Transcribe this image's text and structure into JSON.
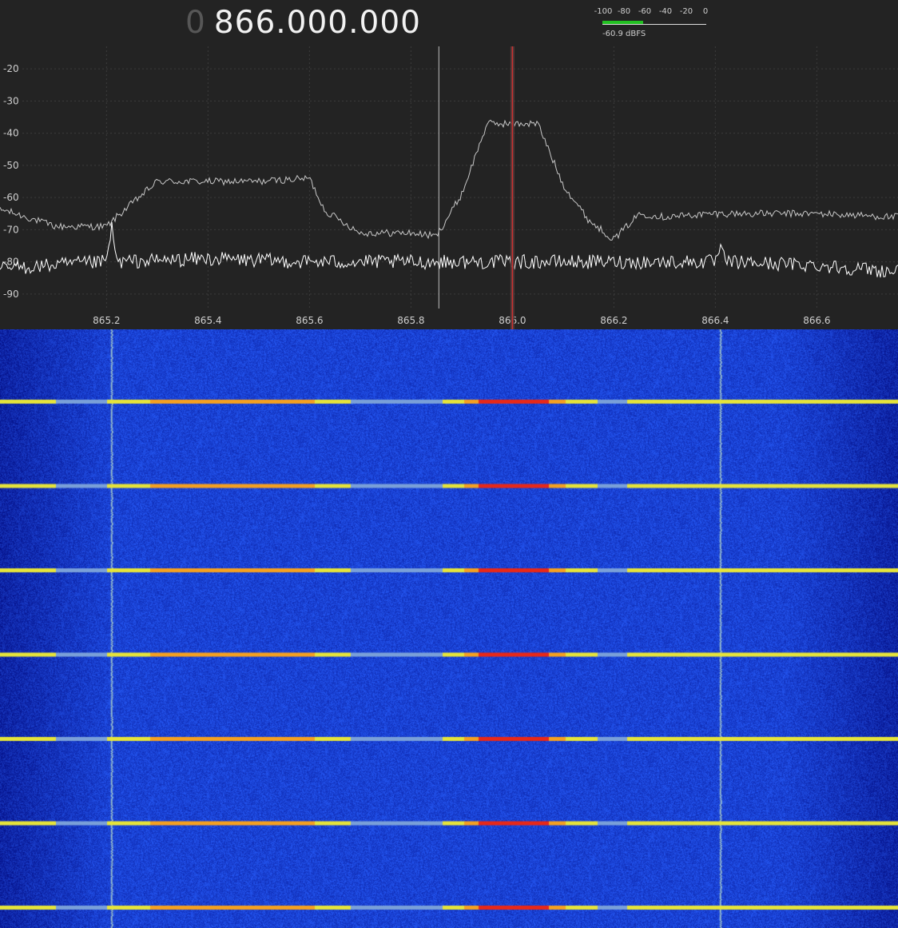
{
  "frequency": {
    "leading_digit": "0",
    "value": "866.000.000"
  },
  "meter": {
    "scale_ticks": [
      "-100",
      "-80",
      "-60",
      "-40",
      "-20",
      "0"
    ],
    "level_dbfs": -60.9,
    "readout": "-60.9 dBFS",
    "bar_color": "#22c022"
  },
  "spectrum": {
    "background": "#232323",
    "grid": true,
    "y_ticks": [
      "-20",
      "-30",
      "-40",
      "-50",
      "-60",
      "-70",
      "-80",
      "-90"
    ],
    "x_ticks": [
      "865.2",
      "865.4",
      "865.6",
      "865.8",
      "866.0",
      "866.2",
      "866.4",
      "866.6"
    ],
    "x_range_mhz": [
      864.99,
      866.76
    ],
    "y_range_db": [
      -95,
      -13
    ],
    "tuned_frequency_mhz": 866.0,
    "cursor_frequency_mhz": 865.855,
    "trace_colors": {
      "live": "#ffffff",
      "peak_hold": "#c8c8c8",
      "tuned_marker": "#d03030"
    }
  },
  "chart_data": {
    "type": "line",
    "title": "",
    "xlabel": "",
    "ylabel": "",
    "x_ticks": [
      "865.2",
      "865.4",
      "865.6",
      "865.8",
      "866.0",
      "866.2",
      "866.4",
      "866.6"
    ],
    "y_ticks": [
      "-20",
      "-30",
      "-40",
      "-50",
      "-60",
      "-70",
      "-80",
      "-90"
    ],
    "xlim": [
      864.99,
      866.76
    ],
    "ylim": [
      -95,
      -13
    ],
    "series": [
      {
        "x": [
          865.0,
          865.1,
          865.2,
          865.22,
          865.3,
          865.4,
          865.5,
          865.6,
          865.63,
          865.7,
          865.8,
          865.85,
          865.9,
          865.95,
          866.0,
          866.05,
          866.1,
          866.15,
          866.2,
          866.25,
          866.3,
          866.4,
          866.5,
          866.6,
          866.75
        ],
        "y": [
          -64,
          -69,
          -69,
          -66,
          -55,
          -55,
          -55,
          -54,
          -64,
          -71,
          -71,
          -72,
          -59,
          -37,
          -37,
          -37,
          -56,
          -67,
          -73,
          -65,
          -66,
          -65,
          -65,
          -65,
          -66
        ]
      },
      {
        "x": [
          865.0,
          865.2,
          865.21,
          865.22,
          865.4,
          865.6,
          865.8,
          866.0,
          866.2,
          866.4,
          866.41,
          866.42,
          866.6,
          866.75
        ],
        "y": [
          -82,
          -80,
          -69,
          -80,
          -79,
          -80,
          -80,
          -80,
          -80,
          -80,
          -76,
          -80,
          -81,
          -83
        ]
      }
    ]
  },
  "waterfall": {
    "background": "#2444d0",
    "burst_count": 7,
    "burst_colors": [
      "#f2e020",
      "#f5a020",
      "#e82818",
      "#7aa0d8"
    ]
  }
}
